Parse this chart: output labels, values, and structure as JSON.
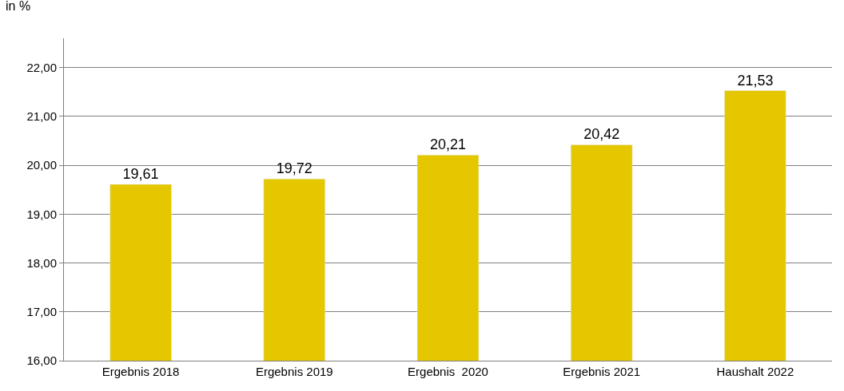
{
  "chart_data": {
    "type": "bar",
    "ylabel": "in %",
    "categories": [
      "Ergebnis 2018",
      "Ergebnis 2019",
      "Ergebnis  2020",
      "Ergebnis 2021",
      "Haushalt 2022"
    ],
    "values": [
      19.61,
      19.72,
      20.21,
      20.42,
      21.53
    ],
    "value_labels": [
      "19,61",
      "19,72",
      "20,21",
      "20,42",
      "21,53"
    ],
    "color": "#e5c700",
    "ylim": [
      16,
      22.6
    ],
    "yticks": [
      {
        "value": 16,
        "label": "16,00"
      },
      {
        "value": 17,
        "label": "17,00"
      },
      {
        "value": 18,
        "label": "18,00"
      },
      {
        "value": 19,
        "label": "19,00"
      },
      {
        "value": 20,
        "label": "20,00"
      },
      {
        "value": 21,
        "label": "21,00"
      },
      {
        "value": 22,
        "label": "22,00"
      }
    ],
    "grid": "y",
    "legend": false
  }
}
